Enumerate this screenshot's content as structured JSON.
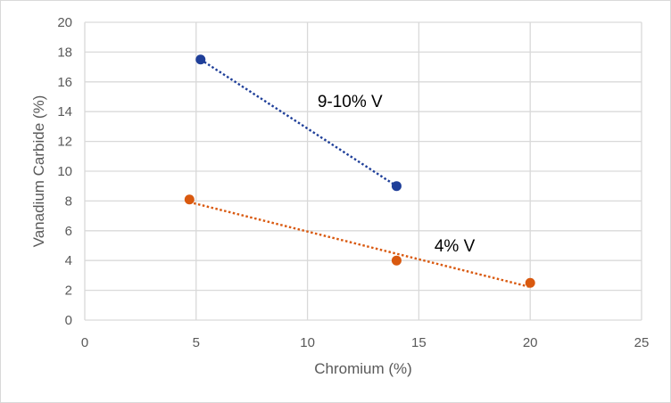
{
  "chart_data": {
    "type": "scatter",
    "title": "",
    "xlabel": "Chromium (%)",
    "ylabel": "Vanadium Carbide (%)",
    "xlim": [
      0,
      25
    ],
    "ylim": [
      0,
      20
    ],
    "x_ticks": [
      0,
      5,
      10,
      15,
      20,
      25
    ],
    "y_ticks": [
      0,
      2,
      4,
      6,
      8,
      10,
      12,
      14,
      16,
      18,
      20
    ],
    "grid": true,
    "legend": "none",
    "series": [
      {
        "name": "9-10% V",
        "color": "#1f3f99",
        "points": [
          {
            "x": 5.2,
            "y": 17.5
          },
          {
            "x": 14.0,
            "y": 9.0
          }
        ],
        "trendline": {
          "type": "linear",
          "style": "dotted",
          "x_from": 5.2,
          "x_to": 14.0
        }
      },
      {
        "name": "4% V",
        "color": "#d9590f",
        "points": [
          {
            "x": 4.7,
            "y": 8.1
          },
          {
            "x": 14.0,
            "y": 4.0
          },
          {
            "x": 20.0,
            "y": 2.5
          }
        ],
        "trendline": {
          "type": "linear",
          "style": "dotted",
          "x_from": 4.7,
          "x_to": 20.0
        }
      }
    ],
    "annotations": [
      {
        "text": "9-10% V",
        "series": "9-10% V"
      },
      {
        "text": "4% V",
        "series": "4% V"
      }
    ]
  }
}
